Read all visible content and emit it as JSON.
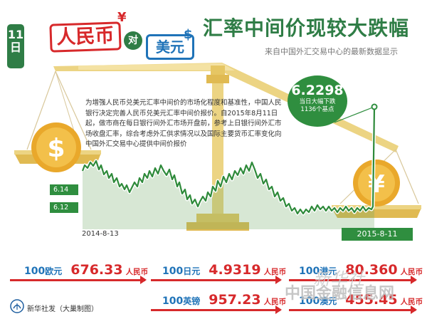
{
  "header": {
    "date_digits": "11",
    "date_suffix": "日",
    "currency_a": "人民币",
    "versus": "对",
    "currency_b": "美元",
    "yen_symbol": "¥",
    "dollar_symbol": "$",
    "title": "汇率中间价现较大跌幅",
    "subtitle": "来自中国外汇交易中心的最新数据显示"
  },
  "description": "为增强人民币兑美元汇率中间价的市场化程度和基准性，中国人民银行决定完善人民币兑美元汇率中间价报价。自2015年8月11日起，做市商在每日银行间外汇市场开盘前，参考上日银行间外汇市场收盘汇率，综合考虑外汇供求情况以及国际主要货币汇率变化向中国外汇交易中心提供中间价报价",
  "highlight": {
    "value": "6.2298",
    "note_line1": "当日大幅下跌",
    "note_line2": "1136个基点"
  },
  "chart": {
    "ytick_upper": "6.14",
    "ytick_lower": "6.12",
    "start_date": "2014-8-13",
    "end_date": "2015-8-11"
  },
  "rates": [
    {
      "amount": "100",
      "unit": "欧元",
      "value": "676.33",
      "rmb": "人民币"
    },
    {
      "amount": "100",
      "unit": "日元",
      "value": "4.9319",
      "rmb": "人民币"
    },
    {
      "amount": "100",
      "unit": "港元",
      "value": "80.360",
      "rmb": "人民币"
    },
    {
      "amount": "100",
      "unit": "英镑",
      "value": "957.23",
      "rmb": "人民币"
    },
    {
      "amount": "100",
      "unit": "澳元",
      "value": "455.45",
      "rmb": "人民币"
    }
  ],
  "footer": "新华社发（大巢制图）",
  "watermark_script": "新华社",
  "watermark_site": "中国金融信息网",
  "colors": {
    "green": "#2f7d46",
    "chart_line": "#3ea845",
    "red": "#d7292b",
    "blue": "#1f73b8",
    "gold": "#e0ba52"
  }
}
